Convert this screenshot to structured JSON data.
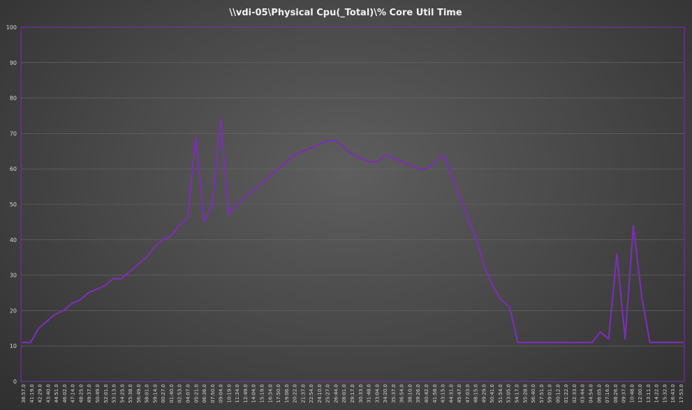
{
  "chart_data": {
    "type": "line",
    "title": "\\\\vdi-05\\Physical Cpu(_Total)\\% Core Util Time",
    "xlabel": "",
    "ylabel": "",
    "ylim": [
      0,
      100
    ],
    "yticks": [
      0,
      10,
      20,
      30,
      40,
      50,
      60,
      70,
      80,
      90,
      100
    ],
    "grid": true,
    "legend": "none",
    "line_color": "#7b2fb5",
    "plot_border_color": "#7b2fb5",
    "x_tick_labels": [
      "38:57.0",
      "41:19.0",
      "42:29.0",
      "43:40.0",
      "44:51.0",
      "46:02.0",
      "47:14.0",
      "48:25.0",
      "49:37.0",
      "50:49.0",
      "52:01.0",
      "53:13.0",
      "54:25.0",
      "55:38.0",
      "56:49.0",
      "58:01.0",
      "59:14.0",
      "00:27.0",
      "01:40.0",
      "02:53.0",
      "04:07.0",
      "05:21.0",
      "06:36.0",
      "07:50.0",
      "09:04.0",
      "10:19.0",
      "11:34.0",
      "12:49.0",
      "14:04.0",
      "15:19.0",
      "16:34.0",
      "17:50.0",
      "19:06.0",
      "20:22.0",
      "21:37.0",
      "22:54.0",
      "24:10.0",
      "25:27.0",
      "26:44.0",
      "28:01.0",
      "29:17.0",
      "30:33.0",
      "31:48.0",
      "33:04.0",
      "34:20.0",
      "35:37.0",
      "36:54.0",
      "38:10.0",
      "39:26.0",
      "40:42.0",
      "41:58.0",
      "43:15.0",
      "44:31.0",
      "45:47.0",
      "47:03.0",
      "48:15.0",
      "49:29.0",
      "50:41.0",
      "51:54.0",
      "53:05.0",
      "54:17.0",
      "55:28.0",
      "56:40.0",
      "57:51.0",
      "59:01.0",
      "00:12.0",
      "01:22.0",
      "02:33.0",
      "03:44.0",
      "04:54.0",
      "06:05.0",
      "07:16.0",
      "08:26.0",
      "09:37.0",
      "10:48.0",
      "12:00.0",
      "13:11.0",
      "14:22.0",
      "15:32.0",
      "16:43.0",
      "17:53.0"
    ],
    "series": [
      {
        "values": [
          11,
          11,
          15,
          17,
          19,
          20,
          22,
          23,
          25,
          26,
          27,
          29,
          29,
          31,
          33,
          35,
          38,
          40,
          41,
          44,
          46,
          69,
          45,
          50,
          74,
          47,
          50,
          52,
          54,
          56,
          58,
          60,
          62,
          64,
          65,
          66,
          67,
          68,
          68,
          66,
          64,
          63,
          62,
          62,
          64,
          63,
          62,
          61,
          60,
          60,
          62,
          64,
          58,
          52,
          46,
          40,
          32,
          27,
          23,
          21,
          11,
          11,
          11,
          11,
          11,
          11,
          11,
          11,
          11,
          11,
          14,
          12,
          36,
          12,
          44,
          24,
          11,
          11,
          11,
          11,
          11
        ]
      }
    ]
  }
}
